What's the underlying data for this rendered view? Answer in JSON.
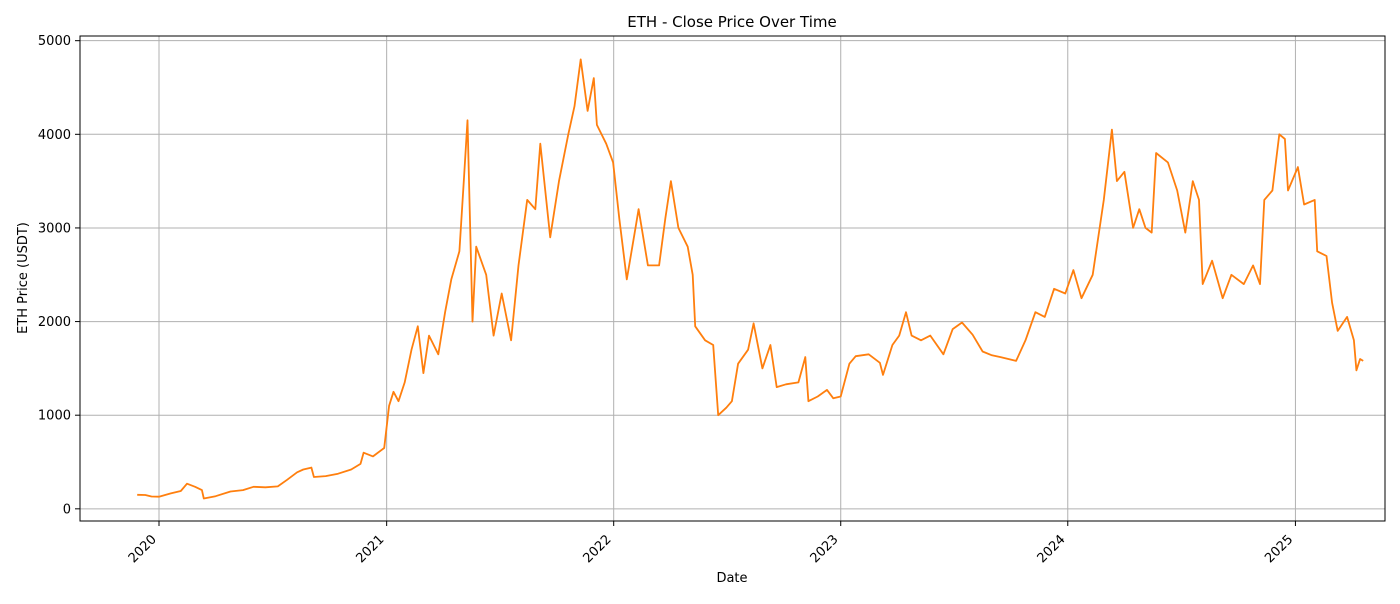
{
  "chart_data": {
    "type": "line",
    "title": "ETH - Close Price Over Time",
    "xlabel": "Date",
    "ylabel": "ETH Price (USDT)",
    "x_range": [
      "2019-08-27",
      "2025-05-25"
    ],
    "ylim": [
      -130,
      5050
    ],
    "grid": true,
    "series": [
      {
        "color": "#ff7f0e",
        "points": [
          [
            "2019-11-27",
            150
          ],
          [
            "2019-12-10",
            148
          ],
          [
            "2019-12-20",
            132
          ],
          [
            "2020-01-01",
            130
          ],
          [
            "2020-01-20",
            165
          ],
          [
            "2020-02-05",
            190
          ],
          [
            "2020-02-15",
            268
          ],
          [
            "2020-02-28",
            235
          ],
          [
            "2020-03-10",
            200
          ],
          [
            "2020-03-13",
            110
          ],
          [
            "2020-04-01",
            135
          ],
          [
            "2020-04-25",
            185
          ],
          [
            "2020-05-15",
            200
          ],
          [
            "2020-06-01",
            235
          ],
          [
            "2020-06-20",
            230
          ],
          [
            "2020-07-10",
            240
          ],
          [
            "2020-07-25",
            310
          ],
          [
            "2020-08-10",
            390
          ],
          [
            "2020-08-20",
            420
          ],
          [
            "2020-09-02",
            440
          ],
          [
            "2020-09-06",
            340
          ],
          [
            "2020-09-25",
            350
          ],
          [
            "2020-10-15",
            375
          ],
          [
            "2020-11-05",
            420
          ],
          [
            "2020-11-20",
            480
          ],
          [
            "2020-11-25",
            600
          ],
          [
            "2020-12-10",
            560
          ],
          [
            "2020-12-28",
            650
          ],
          [
            "2021-01-05",
            1100
          ],
          [
            "2021-01-12",
            1250
          ],
          [
            "2021-01-20",
            1150
          ],
          [
            "2021-01-30",
            1350
          ],
          [
            "2021-02-10",
            1700
          ],
          [
            "2021-02-20",
            1950
          ],
          [
            "2021-03-01",
            1450
          ],
          [
            "2021-03-10",
            1850
          ],
          [
            "2021-03-25",
            1650
          ],
          [
            "2021-04-05",
            2100
          ],
          [
            "2021-04-15",
            2450
          ],
          [
            "2021-04-28",
            2750
          ],
          [
            "2021-05-05",
            3500
          ],
          [
            "2021-05-11",
            4150
          ],
          [
            "2021-05-19",
            2000
          ],
          [
            "2021-05-25",
            2800
          ],
          [
            "2021-06-10",
            2500
          ],
          [
            "2021-06-22",
            1850
          ],
          [
            "2021-07-05",
            2300
          ],
          [
            "2021-07-20",
            1800
          ],
          [
            "2021-08-01",
            2600
          ],
          [
            "2021-08-15",
            3300
          ],
          [
            "2021-08-28",
            3200
          ],
          [
            "2021-09-05",
            3900
          ],
          [
            "2021-09-21",
            2900
          ],
          [
            "2021-10-05",
            3500
          ],
          [
            "2021-10-20",
            4000
          ],
          [
            "2021-10-30",
            4300
          ],
          [
            "2021-11-09",
            4800
          ],
          [
            "2021-11-20",
            4250
          ],
          [
            "2021-11-30",
            4600
          ],
          [
            "2021-12-05",
            4100
          ],
          [
            "2021-12-20",
            3900
          ],
          [
            "2021-12-31",
            3700
          ],
          [
            "2022-01-10",
            3100
          ],
          [
            "2022-01-22",
            2450
          ],
          [
            "2022-02-05",
            3000
          ],
          [
            "2022-02-10",
            3200
          ],
          [
            "2022-02-25",
            2600
          ],
          [
            "2022-03-15",
            2600
          ],
          [
            "2022-03-25",
            3100
          ],
          [
            "2022-04-03",
            3500
          ],
          [
            "2022-04-15",
            3000
          ],
          [
            "2022-04-30",
            2800
          ],
          [
            "2022-05-08",
            2500
          ],
          [
            "2022-05-12",
            1950
          ],
          [
            "2022-05-28",
            1800
          ],
          [
            "2022-06-10",
            1750
          ],
          [
            "2022-06-18",
            1000
          ],
          [
            "2022-07-01",
            1080
          ],
          [
            "2022-07-10",
            1150
          ],
          [
            "2022-07-20",
            1550
          ],
          [
            "2022-08-05",
            1700
          ],
          [
            "2022-08-14",
            1980
          ],
          [
            "2022-08-28",
            1500
          ],
          [
            "2022-09-10",
            1750
          ],
          [
            "2022-09-20",
            1300
          ],
          [
            "2022-10-05",
            1330
          ],
          [
            "2022-10-25",
            1350
          ],
          [
            "2022-11-05",
            1620
          ],
          [
            "2022-11-10",
            1150
          ],
          [
            "2022-11-25",
            1200
          ],
          [
            "2022-12-10",
            1270
          ],
          [
            "2022-12-20",
            1180
          ],
          [
            "2023-01-01",
            1200
          ],
          [
            "2023-01-15",
            1550
          ],
          [
            "2023-01-25",
            1630
          ],
          [
            "2023-02-15",
            1650
          ],
          [
            "2023-03-05",
            1560
          ],
          [
            "2023-03-10",
            1430
          ],
          [
            "2023-03-25",
            1750
          ],
          [
            "2023-04-05",
            1850
          ],
          [
            "2023-04-16",
            2100
          ],
          [
            "2023-04-25",
            1850
          ],
          [
            "2023-05-10",
            1800
          ],
          [
            "2023-05-25",
            1850
          ],
          [
            "2023-06-15",
            1650
          ],
          [
            "2023-06-30",
            1920
          ],
          [
            "2023-07-15",
            1990
          ],
          [
            "2023-08-01",
            1860
          ],
          [
            "2023-08-17",
            1680
          ],
          [
            "2023-09-01",
            1640
          ],
          [
            "2023-09-15",
            1620
          ],
          [
            "2023-10-10",
            1580
          ],
          [
            "2023-10-25",
            1800
          ],
          [
            "2023-11-10",
            2100
          ],
          [
            "2023-11-25",
            2050
          ],
          [
            "2023-12-10",
            2350
          ],
          [
            "2023-12-28",
            2300
          ],
          [
            "2024-01-10",
            2550
          ],
          [
            "2024-01-23",
            2250
          ],
          [
            "2024-02-10",
            2500
          ],
          [
            "2024-02-28",
            3300
          ],
          [
            "2024-03-12",
            4050
          ],
          [
            "2024-03-20",
            3500
          ],
          [
            "2024-04-01",
            3600
          ],
          [
            "2024-04-15",
            3000
          ],
          [
            "2024-04-25",
            3200
          ],
          [
            "2024-05-05",
            3000
          ],
          [
            "2024-05-15",
            2950
          ],
          [
            "2024-05-22",
            3800
          ],
          [
            "2024-06-10",
            3700
          ],
          [
            "2024-06-25",
            3400
          ],
          [
            "2024-07-08",
            2950
          ],
          [
            "2024-07-20",
            3500
          ],
          [
            "2024-07-30",
            3300
          ],
          [
            "2024-08-05",
            2400
          ],
          [
            "2024-08-20",
            2650
          ],
          [
            "2024-09-06",
            2250
          ],
          [
            "2024-09-20",
            2500
          ],
          [
            "2024-10-10",
            2400
          ],
          [
            "2024-10-25",
            2600
          ],
          [
            "2024-11-05",
            2400
          ],
          [
            "2024-11-12",
            3300
          ],
          [
            "2024-11-25",
            3400
          ],
          [
            "2024-12-06",
            4000
          ],
          [
            "2024-12-15",
            3950
          ],
          [
            "2024-12-20",
            3400
          ],
          [
            "2025-01-05",
            3650
          ],
          [
            "2025-01-15",
            3250
          ],
          [
            "2025-02-01",
            3300
          ],
          [
            "2025-02-05",
            2750
          ],
          [
            "2025-02-20",
            2700
          ],
          [
            "2025-03-01",
            2200
          ],
          [
            "2025-03-10",
            1900
          ],
          [
            "2025-03-25",
            2050
          ],
          [
            "2025-04-05",
            1800
          ],
          [
            "2025-04-09",
            1480
          ],
          [
            "2025-04-15",
            1600
          ],
          [
            "2025-04-20",
            1580
          ]
        ]
      }
    ],
    "x_ticks": [
      {
        "date": "2020-01-01",
        "label": "2020"
      },
      {
        "date": "2021-01-01",
        "label": "2021"
      },
      {
        "date": "2022-01-01",
        "label": "2022"
      },
      {
        "date": "2023-01-01",
        "label": "2023"
      },
      {
        "date": "2024-01-01",
        "label": "2024"
      },
      {
        "date": "2025-01-01",
        "label": "2025"
      }
    ],
    "y_ticks": [
      {
        "value": 0,
        "label": "0"
      },
      {
        "value": 1000,
        "label": "1000"
      },
      {
        "value": 2000,
        "label": "2000"
      },
      {
        "value": 3000,
        "label": "3000"
      },
      {
        "value": 4000,
        "label": "4000"
      },
      {
        "value": 5000,
        "label": "5000"
      }
    ]
  }
}
